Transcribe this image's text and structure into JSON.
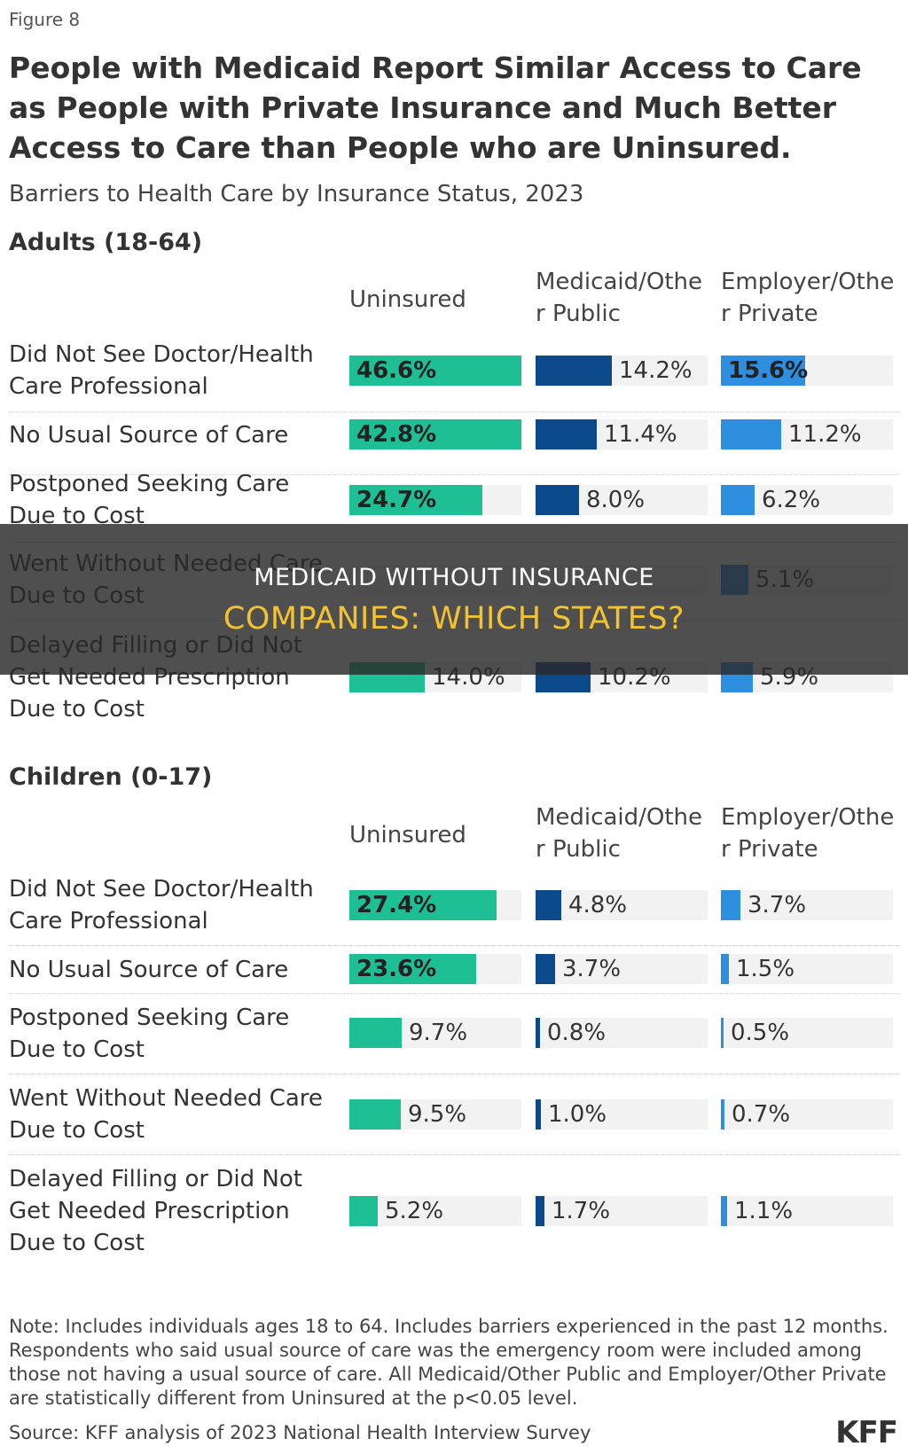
{
  "figure_label": "Figure 8",
  "title": "People with Medicaid Report Similar Access to Care as People with Private Insurance and Much Better Access to Care than People who are Uninsured.",
  "subtitle": "Barriers to Health Care by Insurance Status, 2023",
  "colors": {
    "uninsured": "#1fbf95",
    "medicaid": "#0d4a8c",
    "employer": "#2e8fe0",
    "track": "#f2f2f2",
    "overlay_text_accent": "#f2c230"
  },
  "chart_data": {
    "type": "bar",
    "columns": [
      "Uninsured",
      "Medicaid/Other Public",
      "Employer/Other Private"
    ],
    "panels": [
      {
        "title": "Adults (18-64)",
        "rows": [
          {
            "label": "Did Not See Doctor/Health Care Professional",
            "values": [
              46.6,
              14.2,
              15.6
            ],
            "labels": [
              "46.6%",
              "14.2%",
              "15.6%"
            ]
          },
          {
            "label": "No Usual Source of Care",
            "values": [
              42.8,
              11.4,
              11.2
            ],
            "labels": [
              "42.8%",
              "11.4%",
              "11.2%"
            ]
          },
          {
            "label": "Postponed Seeking Care Due to Cost",
            "values": [
              24.7,
              8.0,
              6.2
            ],
            "labels": [
              "24.7%",
              "8.0%",
              "6.2%"
            ]
          },
          {
            "label": "Went Without Needed Care Due to Cost",
            "values": [
              null,
              null,
              5.1
            ],
            "labels": [
              "",
              "",
              "5.1%"
            ]
          },
          {
            "label": "Delayed Filling or Did Not Get Needed Prescription Due to Cost",
            "values": [
              14.0,
              10.2,
              5.9
            ],
            "labels": [
              "14.0%",
              "10.2%",
              "5.9%"
            ]
          }
        ]
      },
      {
        "title": "Children (0-17)",
        "rows": [
          {
            "label": "Did Not See Doctor/Health Care Professional",
            "values": [
              27.4,
              4.8,
              3.7
            ],
            "labels": [
              "27.4%",
              "4.8%",
              "3.7%"
            ]
          },
          {
            "label": "No Usual Source of Care",
            "values": [
              23.6,
              3.7,
              1.5
            ],
            "labels": [
              "23.6%",
              "3.7%",
              "1.5%"
            ]
          },
          {
            "label": "Postponed Seeking Care Due to Cost",
            "values": [
              9.7,
              0.8,
              0.5
            ],
            "labels": [
              "9.7%",
              "0.8%",
              "0.5%"
            ]
          },
          {
            "label": "Went Without Needed Care Due to Cost",
            "values": [
              9.5,
              1.0,
              0.7
            ],
            "labels": [
              "9.5%",
              "1.0%",
              "0.7%"
            ]
          },
          {
            "label": "Delayed Filling or Did Not Get Needed Prescription Due to Cost",
            "values": [
              5.2,
              1.7,
              1.1
            ],
            "labels": [
              "5.2%",
              "1.7%",
              "1.1%"
            ]
          }
        ]
      }
    ],
    "xlim": [
      0,
      80
    ]
  },
  "note": "Note: Includes individuals ages 18 to 64. Includes barriers experienced in the past 12 months. Respondents who said usual source of care was the emergency room were included among those not having a usual source of care. All Medicaid/Other Public and Employer/Other Private are statistically different from Uninsured at the p<0.05 level.",
  "source": "Source: KFF analysis of 2023 National Health Interview Survey",
  "logo_text": "KFF",
  "overlay": {
    "line1": "MEDICAID WITHOUT INSURANCE",
    "line2": "COMPANIES: WHICH STATES?"
  }
}
